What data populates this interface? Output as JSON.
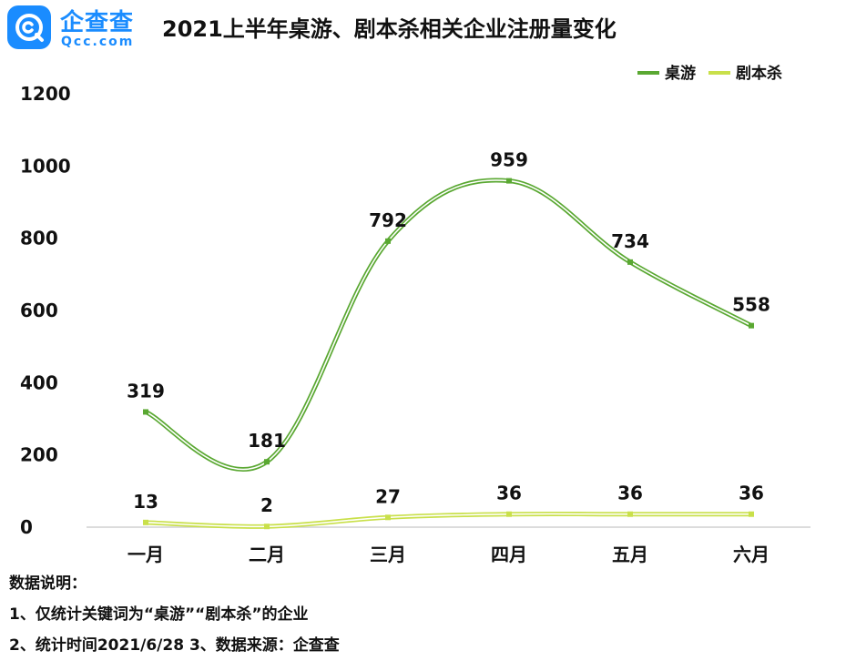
{
  "brand": {
    "name": "企查查",
    "domain": "Qcc.com",
    "color": "#1a8cff"
  },
  "title": "2021上半年桌游、剧本杀相关企业注册量变化",
  "notes": {
    "heading": "数据说明：",
    "line1": "1、仅统计关键词为“桌游”“剧本杀”的企业",
    "line2": "2、统计时间2021/6/28   3、数据来源：企查查"
  },
  "chart_data": {
    "type": "line",
    "title": "2021上半年桌游、剧本杀相关企业注册量变化",
    "xlabel": "",
    "ylabel": "",
    "categories": [
      "一月",
      "二月",
      "三月",
      "四月",
      "五月",
      "六月"
    ],
    "ylim": [
      0,
      1200
    ],
    "yticks": [
      0,
      200,
      400,
      600,
      800,
      1000,
      1200
    ],
    "grid": false,
    "legend": "top-right",
    "smooth": true,
    "series": [
      {
        "name": "桌游",
        "color": "#5aa832",
        "values": [
          319,
          181,
          792,
          959,
          734,
          558
        ]
      },
      {
        "name": "剧本杀",
        "color": "#c9e04a",
        "values": [
          13,
          2,
          27,
          36,
          36,
          36
        ]
      }
    ]
  }
}
